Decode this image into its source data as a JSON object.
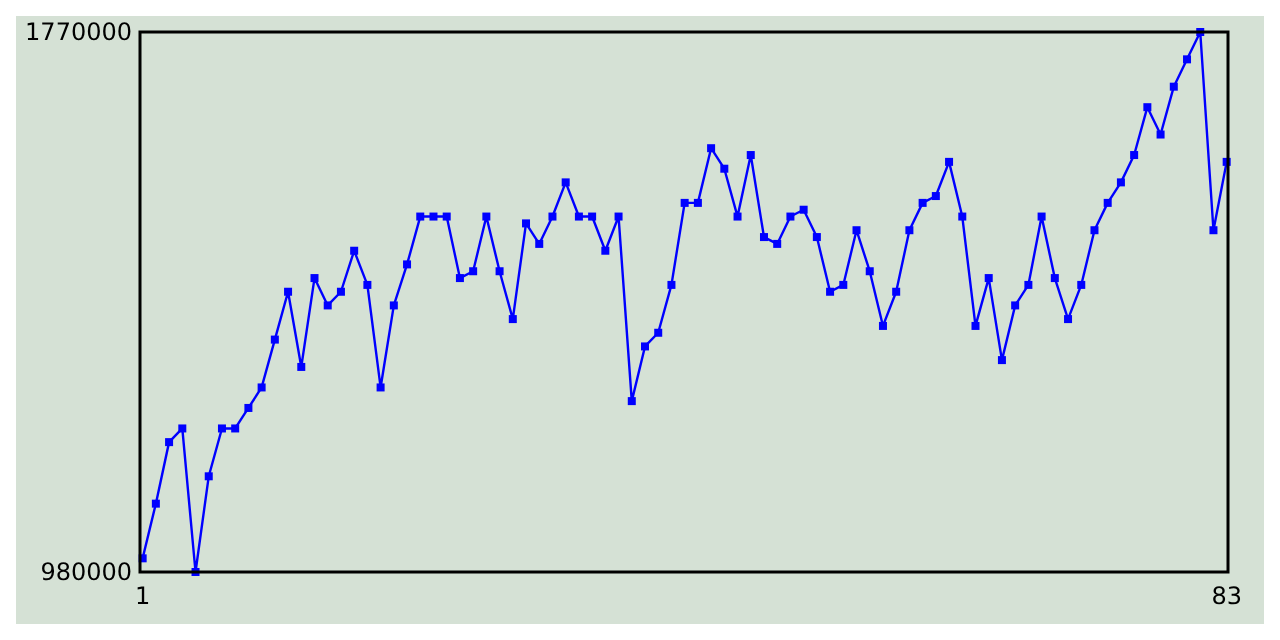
{
  "chart_data": {
    "type": "line",
    "marker": "square",
    "line_style": "solid",
    "grid": false,
    "x": [
      1,
      2,
      3,
      4,
      5,
      6,
      7,
      8,
      9,
      10,
      11,
      12,
      13,
      14,
      15,
      16,
      17,
      18,
      19,
      20,
      21,
      22,
      23,
      24,
      25,
      26,
      27,
      28,
      29,
      30,
      31,
      32,
      33,
      34,
      35,
      36,
      37,
      38,
      39,
      40,
      41,
      42,
      43,
      44,
      45,
      46,
      47,
      48,
      49,
      50,
      51,
      52,
      53,
      54,
      55,
      56,
      57,
      58,
      59,
      60,
      61,
      62,
      63,
      64,
      65,
      66,
      67,
      68,
      69,
      70,
      71,
      72,
      73,
      74,
      75,
      76,
      77,
      78,
      79,
      80,
      81,
      82,
      83
    ],
    "series": [
      {
        "color": "#0000ff",
        "values": [
          1000000,
          1080000,
          1170000,
          1190000,
          980000,
          1120000,
          1190000,
          1190000,
          1220000,
          1250000,
          1320000,
          1390000,
          1280000,
          1410000,
          1370000,
          1390000,
          1450000,
          1400000,
          1250000,
          1370000,
          1430000,
          1500000,
          1500000,
          1500000,
          1410000,
          1420000,
          1500000,
          1420000,
          1350000,
          1490000,
          1460000,
          1500000,
          1550000,
          1500000,
          1500000,
          1450000,
          1500000,
          1230000,
          1310000,
          1330000,
          1400000,
          1520000,
          1520000,
          1600000,
          1570000,
          1500000,
          1590000,
          1470000,
          1460000,
          1500000,
          1510000,
          1470000,
          1390000,
          1400000,
          1480000,
          1420000,
          1340000,
          1390000,
          1480000,
          1520000,
          1530000,
          1580000,
          1500000,
          1340000,
          1410000,
          1290000,
          1370000,
          1400000,
          1500000,
          1410000,
          1350000,
          1400000,
          1480000,
          1520000,
          1550000,
          1590000,
          1660000,
          1620000,
          1690000,
          1730000,
          1770000,
          1480000,
          1580000
        ]
      }
    ],
    "xlim": [
      0.8,
      83.1
    ],
    "xticks": [
      1,
      83
    ],
    "ylim": [
      980000,
      1770000
    ],
    "yticks": [
      980000,
      1770000
    ]
  }
}
